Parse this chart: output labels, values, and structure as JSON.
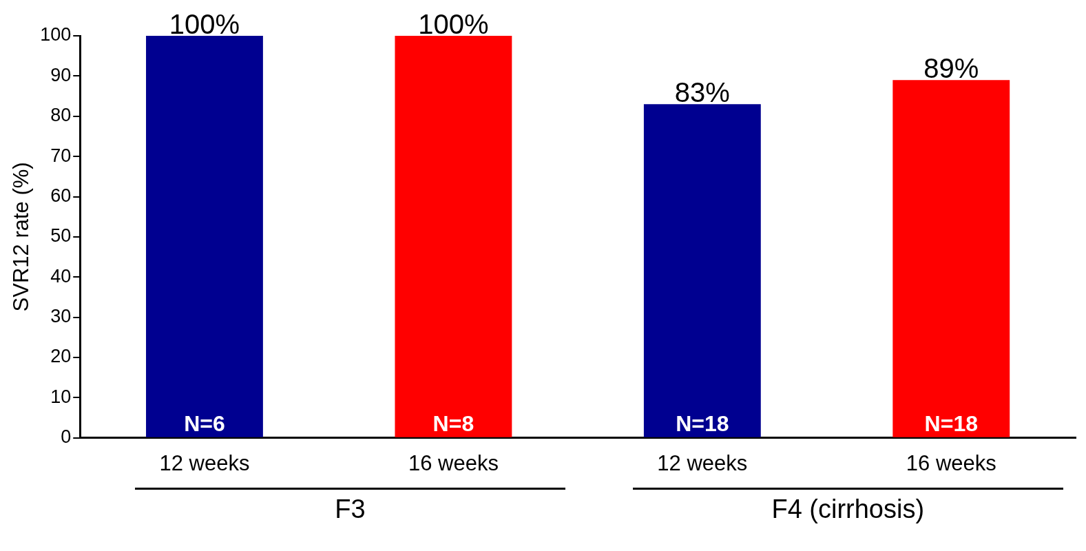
{
  "chart_data": {
    "type": "bar",
    "ylabel": "SVR12 rate (%)",
    "categories": [
      "12 weeks",
      "16 weeks",
      "12 weeks",
      "16 weeks"
    ],
    "values": [
      100,
      100,
      83,
      89
    ],
    "colors": [
      "#000090",
      "#ff0000",
      "#000090",
      "#ff0000"
    ],
    "value_labels": [
      "100%",
      "100%",
      "83%",
      "89%"
    ],
    "annotations": [
      "N=6",
      "N=8",
      "N=18",
      "N=18",
      "F3",
      "F4 (cirrhosis)"
    ],
    "ylim": [
      0,
      100
    ],
    "yticks": [
      0,
      10,
      20,
      30,
      40,
      50,
      60,
      70,
      80,
      90,
      100
    ],
    "grid": false,
    "legend": false
  }
}
